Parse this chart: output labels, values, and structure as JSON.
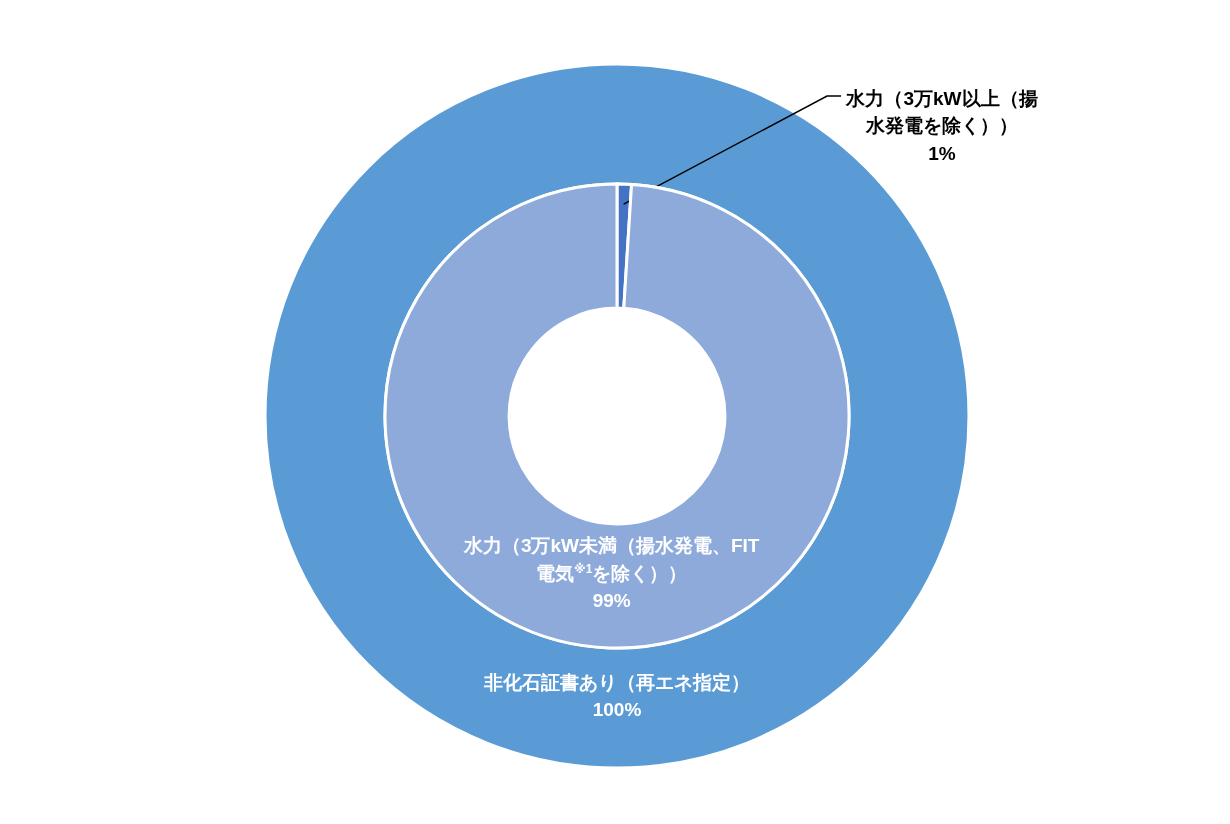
{
  "chart_data": [
    {
      "type": "pie",
      "categories": [
        "非化石証書あり（再エネ指定）"
      ],
      "values": [
        100
      ],
      "colors": [
        "#5b9bd5"
      ],
      "value_labels": [
        "100%"
      ]
    },
    {
      "type": "donut",
      "categories": [
        "水力（3万kW以上（揚水発電を除く））",
        "水力（3万kW未満（揚水発電、FIT電気$^{※1}$を除く））"
      ],
      "values": [
        1,
        99
      ],
      "colors": [
        "#4472c4",
        "#8eaadb"
      ],
      "value_labels": [
        "1%",
        "99%"
      ]
    }
  ]
}
